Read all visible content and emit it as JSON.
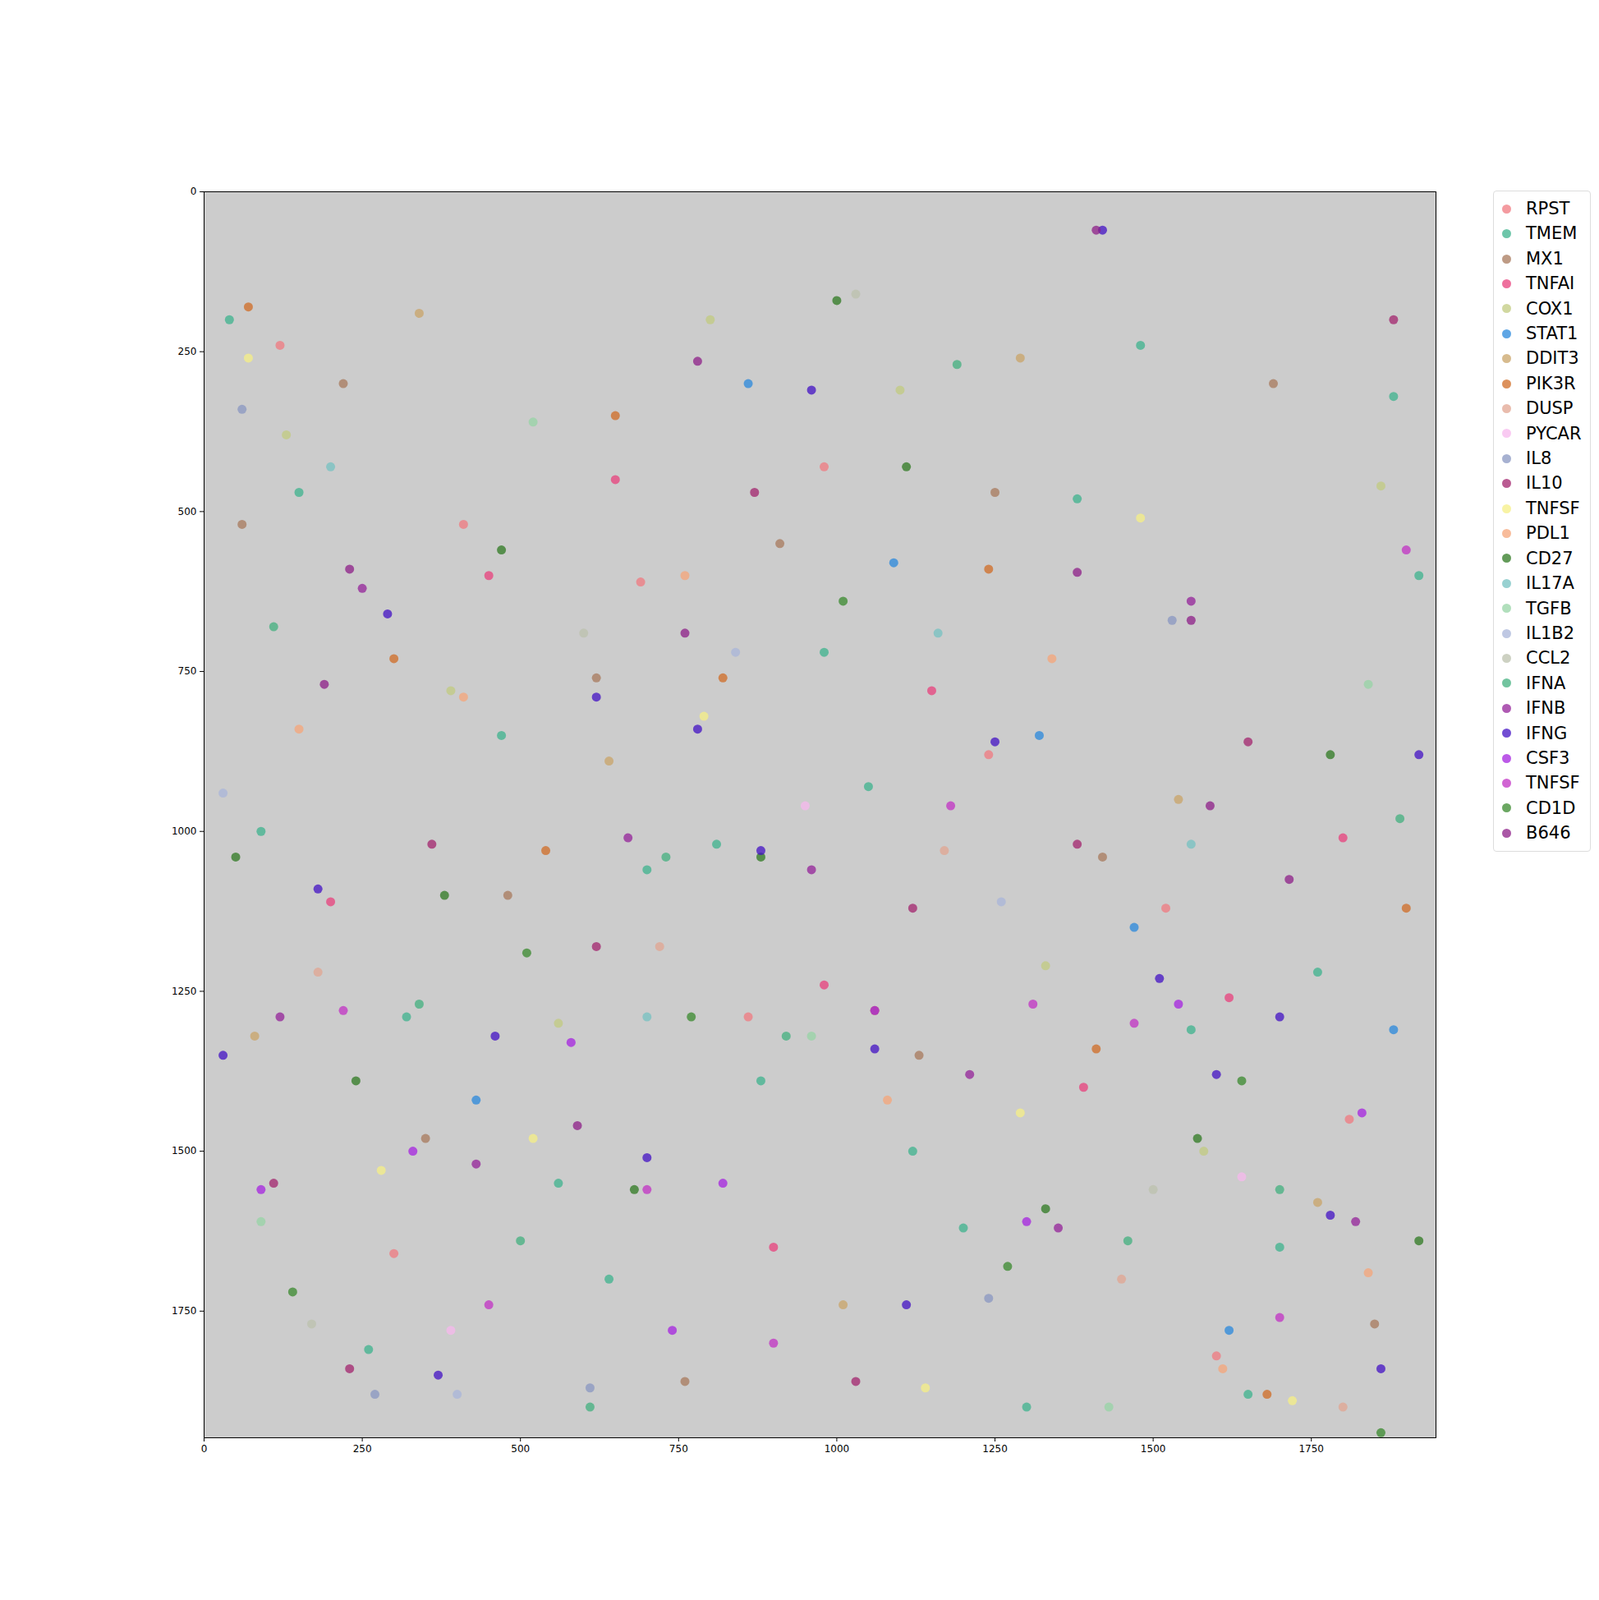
{
  "chart_data": {
    "type": "scatter",
    "xlim": [
      0,
      1947
    ],
    "ylim": [
      1948,
      0
    ],
    "xticks": [
      0,
      250,
      500,
      750,
      1000,
      1250,
      1500,
      1750
    ],
    "yticks": [
      0,
      250,
      500,
      750,
      1000,
      1250,
      1500,
      1750
    ],
    "grid": false,
    "legend": "right",
    "marker": "o",
    "series": [
      {
        "name": "RPST",
        "color": "#f07a80",
        "x": [
          120,
          410,
          690,
          980,
          1240,
          1520,
          1810,
          300,
          860,
          1600
        ],
        "y": [
          240,
          520,
          610,
          430,
          880,
          1120,
          1450,
          1660,
          1290,
          1820
        ]
      },
      {
        "name": "TMEM",
        "color": "#3db38e",
        "x": [
          40,
          150,
          320,
          560,
          700,
          880,
          1050,
          1200,
          1380,
          1560,
          1700,
          1880,
          260,
          640,
          980,
          1300,
          1650,
          90,
          470,
          1120,
          1760,
          1480,
          810,
          1920
        ],
        "y": [
          200,
          470,
          1290,
          1550,
          1060,
          1390,
          930,
          1620,
          480,
          1310,
          1650,
          320,
          1810,
          1700,
          720,
          1900,
          1880,
          1000,
          850,
          1500,
          1220,
          240,
          1020,
          600
        ]
      },
      {
        "name": "MX1",
        "color": "#a87a5c",
        "x": [
          60,
          220,
          480,
          620,
          910,
          1130,
          1420,
          1690,
          1850,
          350,
          760,
          1250
        ],
        "y": [
          520,
          300,
          1100,
          760,
          550,
          1350,
          1040,
          300,
          1770,
          1480,
          1860,
          470
        ]
      },
      {
        "name": "TNFAI",
        "color": "#e8407c",
        "x": [
          200,
          450,
          650,
          900,
          1150,
          1390,
          1620,
          1800,
          980
        ],
        "y": [
          1110,
          600,
          450,
          1650,
          780,
          1400,
          1260,
          1010,
          1240
        ]
      },
      {
        "name": "COX1",
        "color": "#c2cb80",
        "x": [
          130,
          390,
          800,
          1100,
          1330,
          1580,
          1860,
          560
        ],
        "y": [
          380,
          780,
          200,
          310,
          1210,
          1500,
          460,
          1300
        ]
      },
      {
        "name": "STAT1",
        "color": "#2a88dc",
        "x": [
          430,
          860,
          1090,
          1320,
          1470,
          1620,
          1880
        ],
        "y": [
          1420,
          300,
          580,
          850,
          1150,
          1780,
          1310
        ]
      },
      {
        "name": "DDIT3",
        "color": "#c9a468",
        "x": [
          80,
          340,
          640,
          1010,
          1290,
          1540,
          1760
        ],
        "y": [
          1320,
          190,
          890,
          1740,
          260,
          950,
          1580
        ]
      },
      {
        "name": "PIK3R",
        "color": "#d06c26",
        "x": [
          70,
          300,
          540,
          650,
          820,
          1060,
          1240,
          1410,
          1680,
          1900
        ],
        "y": [
          180,
          730,
          1030,
          350,
          760,
          1280,
          590,
          1340,
          1880,
          1120
        ]
      },
      {
        "name": "DUSP",
        "color": "#e2a592",
        "x": [
          180,
          720,
          1170,
          1450,
          1800
        ],
        "y": [
          1220,
          1180,
          1030,
          1700,
          1900
        ]
      },
      {
        "name": "PYCAR",
        "color": "#f7b8ee",
        "x": [
          390,
          950,
          1640
        ],
        "y": [
          1780,
          960,
          1540
        ]
      },
      {
        "name": "IL8",
        "color": "#8a97c2",
        "x": [
          60,
          270,
          610,
          1240,
          1530
        ],
        "y": [
          340,
          1880,
          1870,
          1730,
          670
        ]
      },
      {
        "name": "IL10",
        "color": "#a3246e",
        "x": [
          110,
          360,
          620,
          870,
          1120,
          1380,
          1650,
          1880,
          230,
          1030
        ],
        "y": [
          1550,
          1020,
          1180,
          470,
          1120,
          1020,
          860,
          200,
          1840,
          1860
        ]
      },
      {
        "name": "TNFSF",
        "color": "#f6ef86",
        "x": [
          70,
          280,
          520,
          790,
          1140,
          1480,
          1720,
          1290
        ],
        "y": [
          260,
          1530,
          1480,
          820,
          1870,
          510,
          1890,
          1440
        ]
      },
      {
        "name": "PDL1",
        "color": "#f6a67a",
        "x": [
          150,
          410,
          760,
          1080,
          1340,
          1610,
          1840
        ],
        "y": [
          840,
          790,
          600,
          1420,
          730,
          1840,
          1690
        ]
      },
      {
        "name": "CD27",
        "color": "#2f7a22",
        "x": [
          50,
          240,
          470,
          680,
          880,
          1110,
          1330,
          1570,
          1780,
          1920,
          380,
          1000
        ],
        "y": [
          1040,
          1390,
          560,
          1560,
          1040,
          430,
          1590,
          1480,
          880,
          1640,
          1100,
          170
        ]
      },
      {
        "name": "IL17A",
        "color": "#76c2c2",
        "x": [
          200,
          700,
          1160,
          1560
        ],
        "y": [
          430,
          1290,
          690,
          1020
        ]
      },
      {
        "name": "TGFB",
        "color": "#97d4a6",
        "x": [
          90,
          520,
          960,
          1430,
          1840
        ],
        "y": [
          1610,
          360,
          1320,
          1900,
          770
        ]
      },
      {
        "name": "IL1B2",
        "color": "#a9b6da",
        "x": [
          30,
          400,
          840,
          1260
        ],
        "y": [
          940,
          1880,
          720,
          1110
        ]
      },
      {
        "name": "CCL2",
        "color": "#bcc2ad",
        "x": [
          170,
          600,
          1030,
          1500
        ],
        "y": [
          1770,
          690,
          160,
          1560
        ]
      },
      {
        "name": "IFNA",
        "color": "#43b07f",
        "x": [
          110,
          340,
          500,
          730,
          920,
          1190,
          1460,
          1700,
          1890,
          610
        ],
        "y": [
          680,
          1270,
          1640,
          1040,
          1320,
          270,
          1640,
          1560,
          980,
          1900
        ]
      },
      {
        "name": "IFNB",
        "color": "#94239a",
        "x": [
          250,
          430,
          670,
          960,
          1210,
          1350,
          1560,
          1820,
          120
        ],
        "y": [
          620,
          1520,
          1010,
          1060,
          1380,
          1620,
          640,
          1610,
          1290
        ]
      },
      {
        "name": "IFNG",
        "color": "#4312c4",
        "x": [
          30,
          180,
          290,
          460,
          620,
          780,
          880,
          1060,
          1250,
          1420,
          1600,
          1780,
          1920,
          370,
          1110,
          1510,
          1700,
          700,
          960,
          1860
        ],
        "y": [
          1350,
          1090,
          660,
          1320,
          790,
          840,
          1030,
          1340,
          860,
          60,
          1380,
          1600,
          880,
          1850,
          1740,
          1230,
          1290,
          1510,
          310,
          1840
        ]
      },
      {
        "name": "CSF3",
        "color": "#a623e0",
        "x": [
          90,
          330,
          580,
          820,
          1060,
          1300,
          1540,
          1830,
          740
        ],
        "y": [
          1560,
          1500,
          1330,
          1550,
          1280,
          1610,
          1270,
          1440,
          1780
        ]
      },
      {
        "name": "TNFSF",
        "color": "#c232c4",
        "x": [
          220,
          450,
          700,
          900,
          1180,
          1470,
          1700,
          1900,
          1310
        ],
        "y": [
          1280,
          1740,
          1560,
          1800,
          960,
          1300,
          1760,
          560,
          1270
        ]
      },
      {
        "name": "CD1D",
        "color": "#3a8a2e",
        "x": [
          140,
          510,
          770,
          1010,
          1270,
          1640,
          1860
        ],
        "y": [
          1720,
          1190,
          1290,
          640,
          1680,
          1390,
          1940
        ]
      },
      {
        "name": "B646",
        "color": "#8e1f88",
        "x": [
          780,
          1380,
          190,
          1560,
          760,
          590,
          1590,
          1715,
          1410,
          230
        ],
        "y": [
          265,
          595,
          770,
          670,
          690,
          1460,
          960,
          1075,
          60,
          590
        ]
      }
    ]
  }
}
